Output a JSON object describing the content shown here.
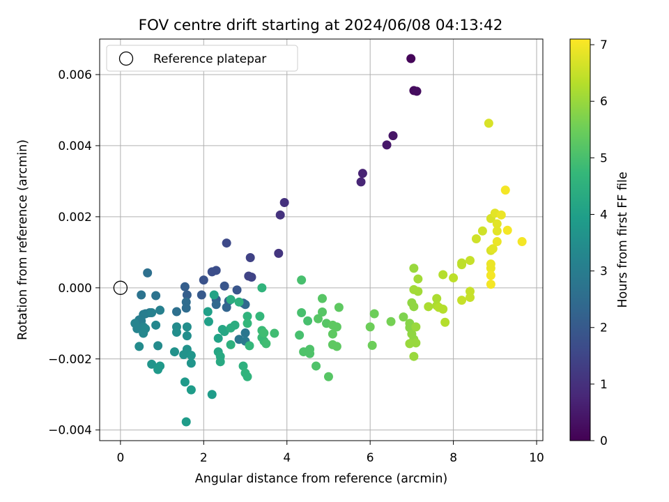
{
  "chart_data": {
    "type": "scatter",
    "title": "FOV centre drift starting at 2024/06/08 04:13:42",
    "xlabel": "Angular distance from reference (arcmin)",
    "ylabel": "Rotation from reference (arcmin)",
    "xlim": [
      -0.5,
      10.15
    ],
    "ylim": [
      -0.0043,
      0.007
    ],
    "x_ticks": [
      0,
      2,
      4,
      6,
      8,
      10
    ],
    "x_tick_labels": [
      "0",
      "2",
      "4",
      "6",
      "8",
      "10"
    ],
    "y_ticks": [
      -0.004,
      -0.002,
      0.0,
      0.002,
      0.004,
      0.006
    ],
    "y_tick_labels": [
      "−0.004",
      "−0.002",
      "0.000",
      "0.002",
      "0.004",
      "0.006"
    ],
    "grid": true,
    "legend": {
      "placement": "upper-left",
      "entries": [
        {
          "label": "Reference platepar",
          "marker": "open-circle"
        }
      ]
    },
    "reference_point": {
      "x": 0,
      "y": 0
    },
    "colorbar": {
      "label": "Hours from first FF file",
      "colormap": "viridis",
      "range": [
        0,
        7.1
      ],
      "ticks": [
        0,
        1,
        2,
        3,
        4,
        5,
        6,
        7
      ],
      "tick_labels": [
        "0",
        "1",
        "2",
        "3",
        "4",
        "5",
        "6",
        "7"
      ]
    },
    "colors": {
      "viridis": [
        "#440154",
        "#482878",
        "#3e4989",
        "#31688e",
        "#26828e",
        "#1f9e89",
        "#35b779",
        "#6ece58",
        "#b5de2b",
        "#fde725"
      ]
    },
    "points": [
      [
        6.98,
        0.00645,
        0.1
      ],
      [
        7.05,
        0.00555,
        0.2
      ],
      [
        7.12,
        0.00553,
        0.25
      ],
      [
        6.55,
        0.00428,
        0.4
      ],
      [
        6.4,
        0.00402,
        0.45
      ],
      [
        5.82,
        0.00322,
        0.7
      ],
      [
        5.78,
        0.00298,
        0.75
      ],
      [
        3.94,
        0.0024,
        1.0
      ],
      [
        3.84,
        0.00205,
        1.05
      ],
      [
        3.8,
        0.00097,
        1.1
      ],
      [
        3.12,
        0.00085,
        1.4
      ],
      [
        3.08,
        0.00033,
        1.45
      ],
      [
        3.15,
        0.0003,
        1.45
      ],
      [
        2.55,
        0.00126,
        1.6
      ],
      [
        2.3,
        0.00049,
        1.7
      ],
      [
        2.2,
        0.00045,
        1.7
      ],
      [
        2.0,
        0.00022,
        1.8
      ],
      [
        2.5,
        5e-05,
        1.9
      ],
      [
        2.8,
        -6e-05,
        1.9
      ],
      [
        1.95,
        -0.0002,
        2.0
      ],
      [
        1.55,
        3e-05,
        2.1
      ],
      [
        1.6,
        -0.0002,
        2.1
      ],
      [
        2.3,
        -0.00033,
        2.2
      ],
      [
        2.6,
        -0.00037,
        2.2
      ],
      [
        2.55,
        -0.00055,
        2.3
      ],
      [
        2.95,
        -0.00043,
        2.3
      ],
      [
        3.0,
        -0.00047,
        2.4
      ],
      [
        2.3,
        -0.00047,
        2.4
      ],
      [
        1.58,
        -0.0004,
        2.5
      ],
      [
        1.58,
        -0.00057,
        2.5
      ],
      [
        1.35,
        -0.00067,
        2.6
      ],
      [
        0.65,
        0.00042,
        2.6
      ],
      [
        0.5,
        -0.0002,
        2.7
      ],
      [
        0.85,
        -0.00022,
        2.7
      ],
      [
        3.0,
        -0.00127,
        2.8
      ],
      [
        2.85,
        -0.00145,
        2.8
      ],
      [
        3.0,
        -0.0015,
        2.9
      ],
      [
        0.7,
        -0.0007,
        2.9
      ],
      [
        0.6,
        -0.00073,
        2.9
      ],
      [
        0.55,
        -0.00075,
        3.0
      ],
      [
        0.45,
        -0.0009,
        3.0
      ],
      [
        0.5,
        -0.00093,
        3.0
      ],
      [
        0.95,
        -0.00063,
        3.1
      ],
      [
        0.75,
        -0.0007,
        3.1
      ],
      [
        0.55,
        -0.0011,
        3.2
      ],
      [
        0.4,
        -0.00115,
        3.2
      ],
      [
        0.35,
        -0.001,
        3.2
      ],
      [
        0.6,
        -0.00115,
        3.3
      ],
      [
        0.55,
        -0.00128,
        3.3
      ],
      [
        0.85,
        -0.00105,
        3.3
      ],
      [
        0.45,
        -0.00165,
        3.4
      ],
      [
        0.9,
        -0.00163,
        3.4
      ],
      [
        1.35,
        -0.0011,
        3.4
      ],
      [
        1.35,
        -0.00125,
        3.5
      ],
      [
        1.6,
        -0.0011,
        3.5
      ],
      [
        1.6,
        -0.00135,
        3.5
      ],
      [
        1.3,
        -0.0018,
        3.6
      ],
      [
        1.52,
        -0.00188,
        3.6
      ],
      [
        1.6,
        -0.00173,
        3.6
      ],
      [
        1.7,
        -0.0019,
        3.7
      ],
      [
        1.7,
        -0.00212,
        3.7
      ],
      [
        0.75,
        -0.00215,
        3.7
      ],
      [
        0.9,
        -0.0023,
        3.8
      ],
      [
        0.95,
        -0.0022,
        3.8
      ],
      [
        1.55,
        -0.00265,
        3.8
      ],
      [
        1.7,
        -0.00287,
        3.9
      ],
      [
        1.58,
        -0.00377,
        3.9
      ],
      [
        2.2,
        -0.003,
        3.9
      ],
      [
        2.1,
        -0.00067,
        4.0
      ],
      [
        2.12,
        -0.00095,
        4.0
      ],
      [
        2.25,
        -0.0002,
        4.1
      ],
      [
        2.35,
        -0.00142,
        4.1
      ],
      [
        2.45,
        -0.00117,
        4.2
      ],
      [
        2.5,
        -0.00123,
        4.2
      ],
      [
        2.35,
        -0.0018,
        4.2
      ],
      [
        2.4,
        -0.00193,
        4.3
      ],
      [
        2.4,
        -0.00208,
        4.3
      ],
      [
        2.65,
        -0.00033,
        4.4
      ],
      [
        2.65,
        -0.00113,
        4.4
      ],
      [
        2.75,
        -0.00105,
        4.4
      ],
      [
        2.85,
        -0.0004,
        4.5
      ],
      [
        2.65,
        -0.0016,
        4.5
      ],
      [
        2.95,
        -0.0022,
        4.5
      ],
      [
        3.0,
        -0.0024,
        4.6
      ],
      [
        3.05,
        -0.0025,
        4.6
      ],
      [
        3.4,
        0.0,
        4.6
      ],
      [
        3.05,
        -0.0008,
        4.6
      ],
      [
        3.05,
        -0.001,
        4.7
      ],
      [
        3.1,
        -0.00163,
        4.7
      ],
      [
        3.35,
        -0.0008,
        4.7
      ],
      [
        3.4,
        -0.0012,
        4.8
      ],
      [
        3.4,
        -0.0014,
        4.8
      ],
      [
        3.45,
        -0.0015,
        4.8
      ],
      [
        3.5,
        -0.00157,
        4.9
      ],
      [
        3.45,
        -0.00127,
        4.9
      ],
      [
        3.7,
        -0.00128,
        4.9
      ],
      [
        4.35,
        0.00022,
        5.0
      ],
      [
        4.35,
        -0.0007,
        5.0
      ],
      [
        4.5,
        -0.00093,
        5.0
      ],
      [
        4.3,
        -0.00133,
        5.0
      ],
      [
        4.4,
        -0.0018,
        5.1
      ],
      [
        4.55,
        -0.00173,
        5.1
      ],
      [
        4.55,
        -0.00185,
        5.1
      ],
      [
        4.7,
        -0.0022,
        5.1
      ],
      [
        4.85,
        -0.0003,
        5.2
      ],
      [
        4.85,
        -0.00068,
        5.2
      ],
      [
        4.75,
        -0.00087,
        5.2
      ],
      [
        4.95,
        -0.001,
        5.2
      ],
      [
        5.0,
        -0.0025,
        5.2
      ],
      [
        5.1,
        -0.00105,
        5.3
      ],
      [
        5.2,
        -0.0011,
        5.3
      ],
      [
        5.1,
        -0.0016,
        5.3
      ],
      [
        5.2,
        -0.00165,
        5.3
      ],
      [
        5.25,
        -0.00055,
        5.3
      ],
      [
        5.1,
        -0.0013,
        5.3
      ],
      [
        6.1,
        -0.00073,
        5.5
      ],
      [
        6.0,
        -0.0011,
        5.5
      ],
      [
        6.05,
        -0.00162,
        5.5
      ],
      [
        6.5,
        -0.00095,
        5.6
      ],
      [
        6.8,
        -0.00082,
        5.7
      ],
      [
        6.95,
        -0.001,
        5.8
      ],
      [
        6.95,
        -0.00112,
        5.8
      ],
      [
        7.0,
        -0.00042,
        5.9
      ],
      [
        7.05,
        -0.00053,
        5.9
      ],
      [
        7.0,
        -0.0013,
        5.9
      ],
      [
        7.05,
        -0.00145,
        5.9
      ],
      [
        7.1,
        -0.0011,
        6.0
      ],
      [
        7.1,
        -0.00155,
        6.0
      ],
      [
        6.95,
        -0.00157,
        6.0
      ],
      [
        7.05,
        -0.00193,
        6.0
      ],
      [
        7.05,
        0.00055,
        6.0
      ],
      [
        7.15,
        0.00025,
        6.1
      ],
      [
        7.05,
        -5e-05,
        6.1
      ],
      [
        7.15,
        -0.0001,
        6.1
      ],
      [
        7.4,
        -0.00053,
        6.2
      ],
      [
        7.6,
        -0.0005,
        6.2
      ],
      [
        7.6,
        -0.0003,
        6.2
      ],
      [
        7.65,
        -0.00055,
        6.3
      ],
      [
        7.75,
        -0.0006,
        6.3
      ],
      [
        7.8,
        -0.00097,
        6.3
      ],
      [
        7.75,
        0.00037,
        6.3
      ],
      [
        8.0,
        0.00028,
        6.4
      ],
      [
        8.2,
        0.00065,
        6.4
      ],
      [
        8.2,
        0.0007,
        6.4
      ],
      [
        8.4,
        0.00077,
        6.5
      ],
      [
        8.2,
        -0.00035,
        6.5
      ],
      [
        8.4,
        -0.0001,
        6.5
      ],
      [
        8.4,
        -0.00027,
        6.5
      ],
      [
        8.55,
        0.00138,
        6.6
      ],
      [
        8.7,
        0.0016,
        6.6
      ],
      [
        8.85,
        0.00463,
        6.7
      ],
      [
        8.9,
        0.00195,
        6.7
      ],
      [
        8.9,
        0.00105,
        6.7
      ],
      [
        8.95,
        0.0011,
        6.8
      ],
      [
        9.0,
        0.0021,
        6.8
      ],
      [
        9.05,
        0.0018,
        6.8
      ],
      [
        9.05,
        0.0016,
        6.8
      ],
      [
        9.15,
        0.00205,
        6.9
      ],
      [
        9.05,
        0.0013,
        6.9
      ],
      [
        8.9,
        0.00067,
        6.9
      ],
      [
        8.9,
        0.00055,
        6.9
      ],
      [
        8.9,
        0.00035,
        7.0
      ],
      [
        8.9,
        0.0001,
        7.0
      ],
      [
        9.25,
        0.00275,
        7.0
      ],
      [
        9.3,
        0.00162,
        7.0
      ],
      [
        9.65,
        0.0013,
        7.0
      ]
    ]
  }
}
